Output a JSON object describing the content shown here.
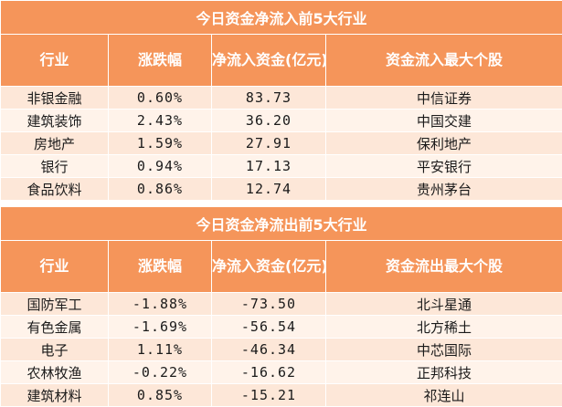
{
  "inflow": {
    "title": "今日资金净流入前5大行业",
    "headers": [
      "行业",
      "涨跌幅",
      "净流入资金(亿元)",
      "资金流入最大个股"
    ],
    "rows": [
      {
        "industry": "非银金融",
        "change": "0.60%",
        "net": "83.73",
        "stock": "中信证券"
      },
      {
        "industry": "建筑装饰",
        "change": "2.43%",
        "net": "36.20",
        "stock": "中国交建"
      },
      {
        "industry": "房地产",
        "change": "1.59%",
        "net": "27.91",
        "stock": "保利地产"
      },
      {
        "industry": "银行",
        "change": "0.94%",
        "net": "17.13",
        "stock": "平安银行"
      },
      {
        "industry": "食品饮料",
        "change": "0.86%",
        "net": "12.74",
        "stock": "贵州茅台"
      }
    ]
  },
  "outflow": {
    "title": "今日资金净流出前5大行业",
    "headers": [
      "行业",
      "涨跌幅",
      "净流入资金(亿元)",
      "资金流出最大个股"
    ],
    "rows": [
      {
        "industry": "国防军工",
        "change": "-1.88%",
        "net": "-73.50",
        "stock": "北斗星通"
      },
      {
        "industry": "有色金属",
        "change": "-1.69%",
        "net": "-56.54",
        "stock": "北方稀土"
      },
      {
        "industry": "电子",
        "change": "1.11%",
        "net": "-46.34",
        "stock": "中芯国际"
      },
      {
        "industry": "农林牧渔",
        "change": "-0.22%",
        "net": "-16.62",
        "stock": "正邦科技"
      },
      {
        "industry": "建筑材料",
        "change": "0.85%",
        "net": "-15.21",
        "stock": "祁连山"
      }
    ]
  },
  "colors": {
    "header_bg": "#f5955a",
    "row_odd": "#fde7d8",
    "row_even": "#fff3ea"
  }
}
